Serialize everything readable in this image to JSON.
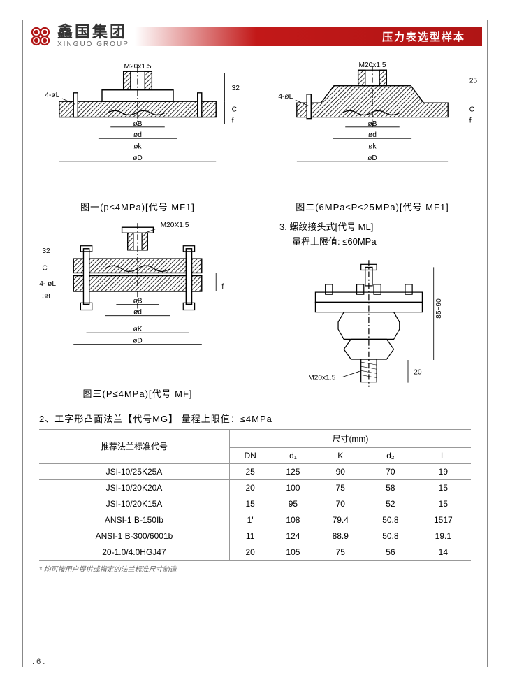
{
  "header": {
    "logo_cn": "鑫国集团",
    "logo_en": "XINGUO GROUP",
    "banner_text": "压力表选型样本"
  },
  "diagrams": {
    "fig1": {
      "caption": "图一(p≤4MPa)[代号 MF1]",
      "labels": {
        "top": "M20x1.5",
        "left": "4-øL",
        "right_v": "32",
        "right_c": "C",
        "right_f": "f",
        "dim_b": "øB",
        "dim_d": "ød",
        "dim_k": "øk",
        "dim_D": "øD"
      }
    },
    "fig2": {
      "caption": "图二(6MPa≤P≤25MPa)[代号 MF1]",
      "labels": {
        "top": "M20x1.5",
        "left": "4-øL",
        "right_25": "25",
        "right_c": "C",
        "right_f": "f",
        "dim_b": "øB",
        "dim_d": "ød",
        "dim_k": "øk",
        "dim_D": "øD"
      }
    },
    "fig3": {
      "caption": "图三(P≤4MPa)[代号 MF]",
      "labels": {
        "top": "M20X1.5",
        "left": "4- øL",
        "v32": "32",
        "c": "C",
        "v38": "38",
        "f": "f",
        "dim_b": "øB",
        "dim_d": "ød",
        "dim_k": "øK",
        "dim_D": "øD"
      }
    },
    "fig4": {
      "heading": "3. 螺纹接头式[代号 ML]",
      "subheading": "量程上限值: ≤60MPa",
      "labels": {
        "bottom": "M20x1.5",
        "right_h": "85~90",
        "v20": "20"
      }
    }
  },
  "section2": {
    "title": "2、工字形凸面法兰【代号MG】  量程上限值：≤4MPa"
  },
  "table": {
    "row_header_label": "推荐法兰标准代号",
    "group_header": "尺寸(mm)",
    "columns": [
      "DN",
      "d₁",
      "K",
      "d₂",
      "L"
    ],
    "rows": [
      {
        "label": "JSI-10/25K25A",
        "cells": [
          "25",
          "125",
          "90",
          "70",
          "19"
        ]
      },
      {
        "label": "JSI-10/20K20A",
        "cells": [
          "20",
          "100",
          "75",
          "58",
          "15"
        ]
      },
      {
        "label": "JSI-10/20K15A",
        "cells": [
          "15",
          "95",
          "70",
          "52",
          "15"
        ]
      },
      {
        "label": "ANSI-1 B-150Ib",
        "cells": [
          "1'",
          "108",
          "79.4",
          "50.8",
          "1517"
        ]
      },
      {
        "label": "ANSI-1 B-300/6001b",
        "cells": [
          "11",
          "124",
          "88.9",
          "50.8",
          "19.1"
        ]
      },
      {
        "label": "20-1.0/4.0HGJ47",
        "cells": [
          "20",
          "105",
          "75",
          "56",
          "14"
        ]
      }
    ]
  },
  "footnote": "* 均可按用户提供或指定的法兰标准尺寸制造",
  "page_number": ". 6 ."
}
